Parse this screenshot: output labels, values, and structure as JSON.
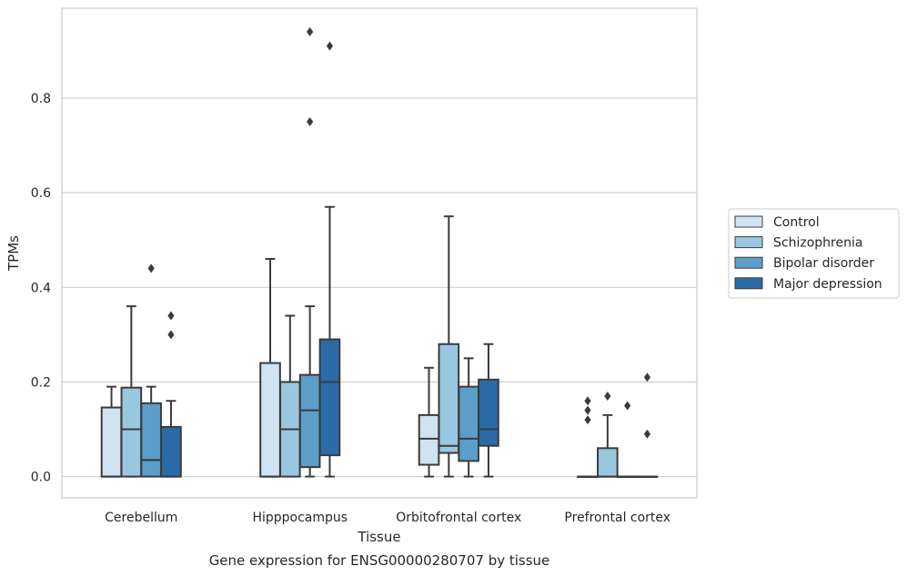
{
  "chart_data": {
    "type": "box",
    "caption": "Gene expression for ENSG00000280707 by tissue",
    "xlabel": "Tissue",
    "ylabel": "TPMs",
    "ylim": [
      -0.045,
      0.99
    ],
    "yticks": [
      0.0,
      0.2,
      0.4,
      0.6,
      0.8
    ],
    "ytick_labels": [
      "0.0",
      "0.2",
      "0.4",
      "0.6",
      "0.8"
    ],
    "grid": "horizontal",
    "legend_position": "right-outside",
    "categories": [
      "Cerebellum",
      "Hipppocampus",
      "Orbitofrontal cortex",
      "Prefrontal cortex"
    ],
    "series": [
      {
        "name": "Control",
        "color": "#d1e2f1",
        "boxes": [
          {
            "whisker_low": 0.0,
            "q1": 0.0,
            "median": 0.0,
            "q3": 0.146,
            "whisker_high": 0.19,
            "outliers": []
          },
          {
            "whisker_low": 0.0,
            "q1": 0.0,
            "median": 0.0,
            "q3": 0.24,
            "whisker_high": 0.46,
            "outliers": []
          },
          {
            "whisker_low": 0.0,
            "q1": 0.025,
            "median": 0.08,
            "q3": 0.13,
            "whisker_high": 0.23,
            "outliers": []
          },
          {
            "whisker_low": 0.0,
            "q1": 0.0,
            "median": 0.0,
            "q3": 0.0,
            "whisker_high": 0.0,
            "outliers": [
              0.16,
              0.14,
              0.12
            ]
          }
        ]
      },
      {
        "name": "Schizophrenia",
        "color": "#9ac7e0",
        "boxes": [
          {
            "whisker_low": 0.0,
            "q1": 0.0,
            "median": 0.1,
            "q3": 0.188,
            "whisker_high": 0.36,
            "outliers": []
          },
          {
            "whisker_low": 0.0,
            "q1": 0.0,
            "median": 0.1,
            "q3": 0.2,
            "whisker_high": 0.34,
            "outliers": []
          },
          {
            "whisker_low": 0.0,
            "q1": 0.05,
            "median": 0.065,
            "q3": 0.28,
            "whisker_high": 0.55,
            "outliers": []
          },
          {
            "whisker_low": 0.0,
            "q1": 0.0,
            "median": 0.0,
            "q3": 0.06,
            "whisker_high": 0.13,
            "outliers": [
              0.17
            ]
          }
        ]
      },
      {
        "name": "Bipolar disorder",
        "color": "#5a9ec9",
        "boxes": [
          {
            "whisker_low": 0.0,
            "q1": 0.0,
            "median": 0.035,
            "q3": 0.155,
            "whisker_high": 0.19,
            "outliers": [
              0.44
            ]
          },
          {
            "whisker_low": 0.0,
            "q1": 0.02,
            "median": 0.14,
            "q3": 0.215,
            "whisker_high": 0.36,
            "outliers": [
              0.94,
              0.75
            ]
          },
          {
            "whisker_low": 0.0,
            "q1": 0.033,
            "median": 0.08,
            "q3": 0.19,
            "whisker_high": 0.25,
            "outliers": []
          },
          {
            "whisker_low": 0.0,
            "q1": 0.0,
            "median": 0.0,
            "q3": 0.0,
            "whisker_high": 0.0,
            "outliers": [
              0.15
            ]
          }
        ]
      },
      {
        "name": "Major depression",
        "color": "#2b6ba8",
        "boxes": [
          {
            "whisker_low": 0.0,
            "q1": 0.0,
            "median": 0.0,
            "q3": 0.105,
            "whisker_high": 0.16,
            "outliers": [
              0.34,
              0.3
            ]
          },
          {
            "whisker_low": 0.0,
            "q1": 0.045,
            "median": 0.2,
            "q3": 0.29,
            "whisker_high": 0.57,
            "outliers": [
              0.91
            ]
          },
          {
            "whisker_low": 0.0,
            "q1": 0.065,
            "median": 0.1,
            "q3": 0.205,
            "whisker_high": 0.28,
            "outliers": []
          },
          {
            "whisker_low": 0.0,
            "q1": 0.0,
            "median": 0.0,
            "q3": 0.0,
            "whisker_high": 0.0,
            "outliers": [
              0.21,
              0.09
            ]
          }
        ]
      }
    ]
  }
}
